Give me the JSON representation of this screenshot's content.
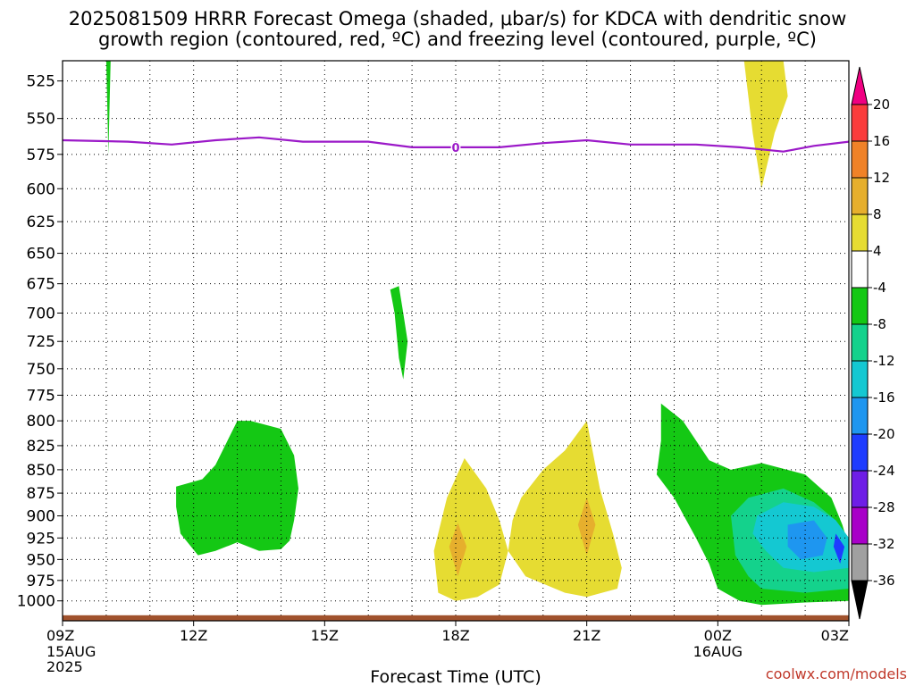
{
  "chart_data": {
    "type": "heatmap",
    "title": "2025081509 HRRR Forecast Omega (shaded, μbar/s) for KDCA with dendritic snow growth region (contoured, red, ºC) and freezing level (contoured, purple, ºC)",
    "title_lines": [
      "2025081509 HRRR Forecast Omega (shaded, μbar/s) for KDCA with dendritic snow",
      "growth region (contoured, red, ºC) and freezing level (contoured, purple, ºC)"
    ],
    "xlabel": "Forecast Time (UTC)",
    "ylabel": "",
    "x_ticks": [
      {
        "hour": 0,
        "label": "09Z",
        "sub": [
          "15AUG",
          "2025"
        ]
      },
      {
        "hour": 3,
        "label": "12Z",
        "sub": []
      },
      {
        "hour": 6,
        "label": "15Z",
        "sub": []
      },
      {
        "hour": 9,
        "label": "18Z",
        "sub": []
      },
      {
        "hour": 12,
        "label": "21Z",
        "sub": []
      },
      {
        "hour": 15,
        "label": "00Z",
        "sub": [
          "16AUG"
        ]
      },
      {
        "hour": 18,
        "label": "03Z",
        "sub": []
      }
    ],
    "xlim": [
      0,
      18
    ],
    "x_units": "forecast hour from 2025-08-15 09Z",
    "y_ticks": [
      525,
      550,
      575,
      600,
      625,
      650,
      675,
      700,
      725,
      750,
      775,
      800,
      825,
      850,
      875,
      900,
      925,
      950,
      975,
      1000
    ],
    "ylim": [
      1025,
      512
    ],
    "y_scale": "log",
    "y_units": "hPa",
    "grid": true,
    "colorbar": {
      "levels": [
        -36,
        -32,
        -28,
        -24,
        -20,
        -16,
        -12,
        -8,
        -4,
        4,
        8,
        12,
        16,
        20
      ],
      "colors": [
        "#000000",
        "#a0a0a0",
        "#a800c8",
        "#6e1ee6",
        "#1e3cff",
        "#1e96f0",
        "#14c8d2",
        "#14d28c",
        "#14c814",
        "#ffffff",
        "#e6dc32",
        "#e6af2d",
        "#f08228",
        "#fa3c3c",
        "#f00082"
      ]
    },
    "freezing_level": {
      "color": "#9b19c8",
      "label": "0",
      "points": [
        [
          0,
          565
        ],
        [
          1.5,
          566
        ],
        [
          2.5,
          568
        ],
        [
          3.5,
          565
        ],
        [
          4.5,
          563
        ],
        [
          5.5,
          566
        ],
        [
          7,
          566
        ],
        [
          8,
          570
        ],
        [
          9,
          570
        ],
        [
          10,
          570
        ],
        [
          11,
          567
        ],
        [
          12,
          565
        ],
        [
          13,
          568
        ],
        [
          14.5,
          568
        ],
        [
          15.5,
          570
        ],
        [
          16.5,
          573
        ],
        [
          17.2,
          569
        ],
        [
          18,
          566
        ]
      ],
      "label_x": 9,
      "label_y": 570
    },
    "terrain": {
      "color": "#a0522d",
      "pressure": 1018
    },
    "omega_regions": [
      {
        "level": -4,
        "color": "#14c814",
        "points": [
          [
            1.0,
            510
          ],
          [
            1.05,
            575
          ],
          [
            1.1,
            510
          ]
        ]
      },
      {
        "level": 4,
        "color": "#e6dc32",
        "points": [
          [
            15.6,
            510
          ],
          [
            15.8,
            560
          ],
          [
            16.0,
            600
          ],
          [
            16.3,
            560
          ],
          [
            16.6,
            535
          ],
          [
            16.5,
            510
          ]
        ]
      },
      {
        "level": -4,
        "color": "#14c814",
        "points": [
          [
            7.5,
            680
          ],
          [
            7.6,
            700
          ],
          [
            7.7,
            740
          ],
          [
            7.8,
            760
          ],
          [
            7.9,
            725
          ],
          [
            7.8,
            700
          ],
          [
            7.7,
            677
          ]
        ]
      },
      {
        "level": -4,
        "color": "#14c814",
        "points": [
          [
            2.6,
            868
          ],
          [
            3.2,
            860
          ],
          [
            3.5,
            845
          ],
          [
            4.0,
            800
          ],
          [
            4.3,
            800
          ],
          [
            5.0,
            808
          ],
          [
            5.3,
            835
          ],
          [
            5.4,
            870
          ],
          [
            5.3,
            905
          ],
          [
            5.2,
            928
          ],
          [
            5.0,
            938
          ],
          [
            4.5,
            940
          ],
          [
            4.0,
            930
          ],
          [
            3.5,
            940
          ],
          [
            3.1,
            945
          ],
          [
            2.7,
            920
          ],
          [
            2.6,
            890
          ]
        ]
      },
      {
        "level": 4,
        "color": "#e6dc32",
        "points": [
          [
            9.2,
            838
          ],
          [
            9.7,
            870
          ],
          [
            10.0,
            905
          ],
          [
            10.2,
            940
          ],
          [
            10.0,
            980
          ],
          [
            9.5,
            995
          ],
          [
            9.0,
            1000
          ],
          [
            8.6,
            990
          ],
          [
            8.5,
            940
          ],
          [
            8.8,
            880
          ]
        ]
      },
      {
        "level": 8,
        "color": "#e6af2d",
        "points": [
          [
            9.05,
            908
          ],
          [
            9.25,
            935
          ],
          [
            9.05,
            970
          ],
          [
            8.85,
            935
          ]
        ]
      },
      {
        "level": 4,
        "color": "#e6dc32",
        "points": [
          [
            12.0,
            800
          ],
          [
            12.3,
            870
          ],
          [
            12.6,
            920
          ],
          [
            12.8,
            960
          ],
          [
            12.7,
            985
          ],
          [
            12.0,
            995
          ],
          [
            11.5,
            990
          ],
          [
            10.6,
            970
          ],
          [
            10.2,
            940
          ],
          [
            10.3,
            905
          ],
          [
            10.5,
            880
          ],
          [
            11.0,
            850
          ],
          [
            11.5,
            830
          ]
        ]
      },
      {
        "level": 8,
        "color": "#e6af2d",
        "points": [
          [
            12.0,
            880
          ],
          [
            12.2,
            910
          ],
          [
            12.0,
            945
          ],
          [
            11.8,
            910
          ]
        ]
      },
      {
        "level": -4,
        "color": "#14c814",
        "points": [
          [
            13.7,
            783
          ],
          [
            14.2,
            800
          ],
          [
            14.8,
            840
          ],
          [
            15.3,
            850
          ],
          [
            16.0,
            843
          ],
          [
            17.0,
            855
          ],
          [
            17.6,
            880
          ],
          [
            17.85,
            910
          ],
          [
            18.0,
            935
          ],
          [
            18.0,
            1000
          ],
          [
            17.0,
            1002
          ],
          [
            16.0,
            1005
          ],
          [
            15.5,
            1000
          ],
          [
            15.0,
            985
          ],
          [
            14.8,
            955
          ],
          [
            14.5,
            925
          ],
          [
            14.0,
            880
          ],
          [
            13.6,
            855
          ],
          [
            13.7,
            820
          ]
        ]
      },
      {
        "level": -8,
        "color": "#14d28c",
        "points": [
          [
            15.3,
            900
          ],
          [
            15.7,
            880
          ],
          [
            16.5,
            870
          ],
          [
            17.2,
            885
          ],
          [
            17.7,
            905
          ],
          [
            18.0,
            925
          ],
          [
            18.0,
            985
          ],
          [
            17.0,
            990
          ],
          [
            16.0,
            985
          ],
          [
            15.7,
            970
          ],
          [
            15.4,
            945
          ]
        ]
      },
      {
        "level": -12,
        "color": "#14c8d2",
        "points": [
          [
            15.9,
            900
          ],
          [
            16.5,
            885
          ],
          [
            17.2,
            890
          ],
          [
            17.7,
            905
          ],
          [
            18.0,
            925
          ],
          [
            18.0,
            960
          ],
          [
            17.2,
            965
          ],
          [
            16.5,
            960
          ],
          [
            16.1,
            940
          ],
          [
            15.8,
            920
          ]
        ]
      },
      {
        "level": -16,
        "color": "#1e96f0",
        "points": [
          [
            16.6,
            910
          ],
          [
            17.2,
            905
          ],
          [
            17.5,
            925
          ],
          [
            17.4,
            945
          ],
          [
            16.9,
            950
          ],
          [
            16.6,
            935
          ]
        ]
      },
      {
        "level": -20,
        "color": "#1e3cff",
        "points": [
          [
            17.7,
            920
          ],
          [
            17.9,
            935
          ],
          [
            17.8,
            955
          ],
          [
            17.65,
            935
          ]
        ]
      }
    ]
  },
  "credit": "coolwx.com/models"
}
